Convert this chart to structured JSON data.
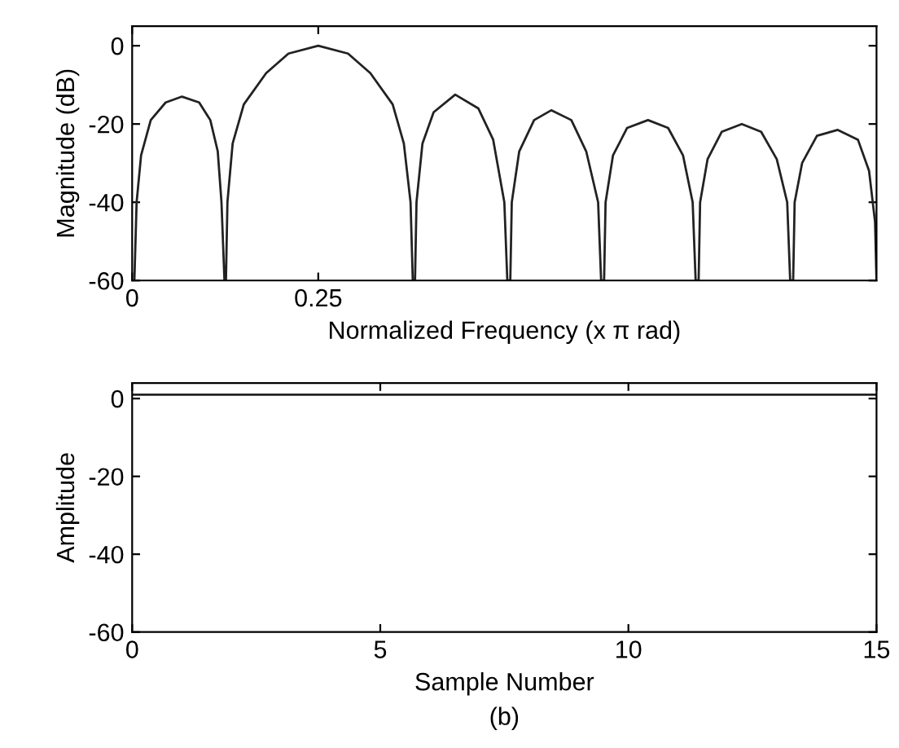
{
  "chart_data": [
    {
      "type": "line",
      "xlabel": "Normalized Frequency (x π rad)",
      "ylabel": "Magnitude (dB)",
      "xlim": [
        0,
        1
      ],
      "ylim": [
        -60,
        5
      ],
      "xticks": [
        0,
        0.25
      ],
      "yticks": [
        -60,
        -40,
        -20,
        0
      ],
      "grid": false,
      "legend": false,
      "marker": "none",
      "line_style": "solid",
      "series": [
        {
          "color": "#222222",
          "x": [
            0.003,
            0.006,
            0.012,
            0.025,
            0.045,
            0.067,
            0.09,
            0.105,
            0.115,
            0.12,
            0.124,
            0.126,
            0.128,
            0.135,
            0.15,
            0.18,
            0.21,
            0.25,
            0.29,
            0.32,
            0.35,
            0.365,
            0.374,
            0.377,
            0.38,
            0.382,
            0.39,
            0.405,
            0.434,
            0.465,
            0.485,
            0.5,
            0.504,
            0.508,
            0.51,
            0.52,
            0.54,
            0.563,
            0.59,
            0.61,
            0.626,
            0.63,
            0.634,
            0.636,
            0.646,
            0.665,
            0.693,
            0.72,
            0.74,
            0.753,
            0.757,
            0.761,
            0.763,
            0.773,
            0.792,
            0.819,
            0.845,
            0.866,
            0.88,
            0.884,
            0.888,
            0.89,
            0.9,
            0.92,
            0.948,
            0.975,
            0.99,
            0.998,
            1.0
          ],
          "values": [
            -60,
            -40,
            -28,
            -19,
            -14.5,
            -13,
            -14.5,
            -19,
            -27,
            -40,
            -60,
            -60,
            -40,
            -25,
            -15,
            -7,
            -2,
            0,
            -2,
            -7,
            -15,
            -25,
            -40,
            -60,
            -60,
            -40,
            -25,
            -17,
            -12.5,
            -16,
            -24,
            -40,
            -60,
            -60,
            -40,
            -27,
            -19,
            -16.5,
            -19,
            -27,
            -40,
            -60,
            -60,
            -40,
            -28,
            -21,
            -19,
            -21,
            -28,
            -40,
            -60,
            -60,
            -40,
            -29,
            -22,
            -20,
            -22,
            -29,
            -40,
            -60,
            -60,
            -40,
            -30,
            -23,
            -21.5,
            -24,
            -32,
            -45,
            -60
          ]
        }
      ]
    },
    {
      "type": "line",
      "xlabel": "Sample Number",
      "ylabel": "Amplitude",
      "xlim": [
        0,
        15
      ],
      "ylim": [
        -60,
        4
      ],
      "xticks": [
        0,
        5,
        10,
        15
      ],
      "yticks": [
        -60,
        -40,
        -20,
        0
      ],
      "grid": false,
      "legend": false,
      "marker": "none",
      "line_style": "solid",
      "annotations": [
        "(b)"
      ],
      "series": [
        {
          "color": "#222222",
          "x": [
            0,
            15
          ],
          "values": [
            1,
            1
          ]
        }
      ]
    }
  ]
}
